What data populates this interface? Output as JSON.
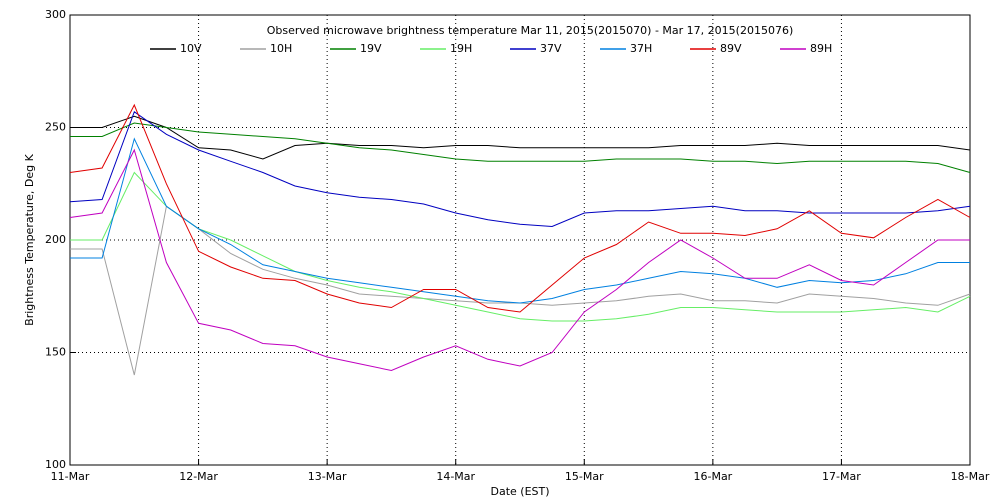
{
  "chart_data": {
    "type": "line",
    "title": "Observed microwave brightness temperature Mar 11, 2015(2015070) - Mar 17, 2015(2015076)",
    "xlabel": "Date (EST)",
    "ylabel": "Brightness Temperature, Deg K",
    "x": [
      0,
      0.25,
      0.5,
      0.75,
      1,
      1.25,
      1.5,
      1.75,
      2,
      2.25,
      2.5,
      2.75,
      3,
      3.25,
      3.5,
      3.75,
      4,
      4.25,
      4.5,
      4.75,
      5,
      5.25,
      5.5,
      5.75,
      6,
      6.25,
      6.5,
      6.75,
      7
    ],
    "xlim": [
      0,
      7
    ],
    "xticks": [
      {
        "value": 0,
        "label": "11-Mar"
      },
      {
        "value": 1,
        "label": "12-Mar"
      },
      {
        "value": 2,
        "label": "13-Mar"
      },
      {
        "value": 3,
        "label": "14-Mar"
      },
      {
        "value": 4,
        "label": "15-Mar"
      },
      {
        "value": 5,
        "label": "16-Mar"
      },
      {
        "value": 6,
        "label": "17-Mar"
      },
      {
        "value": 7,
        "label": "18-Mar"
      }
    ],
    "ylim": [
      100,
      300
    ],
    "yticks": [
      100,
      150,
      200,
      250,
      300
    ],
    "grid": true,
    "legend": "top",
    "series": [
      {
        "name": "10V",
        "color": "#000000",
        "values": [
          250,
          250,
          255,
          250,
          241,
          240,
          236,
          242,
          243,
          242,
          242,
          241,
          242,
          242,
          241,
          241,
          241,
          241,
          241,
          242,
          242,
          242,
          243,
          242,
          242,
          242,
          242,
          242,
          240
        ]
      },
      {
        "name": "10H",
        "color": "#a0a0a0",
        "values": [
          196,
          196,
          140,
          215,
          205,
          194,
          187,
          183,
          180,
          176,
          175,
          174,
          173,
          172,
          172,
          171,
          172,
          173,
          175,
          176,
          173,
          173,
          172,
          176,
          175,
          174,
          172,
          171,
          176
        ]
      },
      {
        "name": "19V",
        "color": "#008000",
        "values": [
          246,
          246,
          252,
          250,
          248,
          247,
          246,
          245,
          243,
          241,
          240,
          238,
          236,
          235,
          235,
          235,
          235,
          236,
          236,
          236,
          235,
          235,
          234,
          235,
          235,
          235,
          235,
          234,
          230
        ]
      },
      {
        "name": "19H",
        "color": "#66ee66",
        "values": [
          200,
          200,
          230,
          215,
          205,
          200,
          193,
          186,
          182,
          179,
          177,
          174,
          171,
          168,
          165,
          164,
          164,
          165,
          167,
          170,
          170,
          169,
          168,
          168,
          168,
          169,
          170,
          168,
          175
        ]
      },
      {
        "name": "37V",
        "color": "#0000c0",
        "values": [
          217,
          218,
          257,
          247,
          240,
          235,
          230,
          224,
          221,
          219,
          218,
          216,
          212,
          209,
          207,
          206,
          212,
          213,
          213,
          214,
          215,
          213,
          213,
          212,
          212,
          212,
          212,
          213,
          215
        ]
      },
      {
        "name": "37H",
        "color": "#0080e0",
        "values": [
          192,
          192,
          245,
          215,
          205,
          198,
          189,
          186,
          183,
          181,
          179,
          177,
          175,
          173,
          172,
          174,
          178,
          180,
          183,
          186,
          185,
          183,
          179,
          182,
          181,
          182,
          185,
          190,
          190
        ]
      },
      {
        "name": "89V",
        "color": "#e00000",
        "values": [
          230,
          232,
          260,
          225,
          195,
          188,
          183,
          182,
          176,
          172,
          170,
          178,
          178,
          170,
          168,
          180,
          192,
          198,
          208,
          203,
          203,
          202,
          205,
          213,
          203,
          201,
          210,
          218,
          210
        ]
      },
      {
        "name": "89H",
        "color": "#c000c0",
        "values": [
          210,
          212,
          240,
          190,
          163,
          160,
          154,
          153,
          148,
          145,
          142,
          148,
          153,
          147,
          144,
          150,
          168,
          178,
          190,
          200,
          192,
          183,
          183,
          189,
          182,
          180,
          190,
          200,
          200
        ]
      }
    ]
  }
}
